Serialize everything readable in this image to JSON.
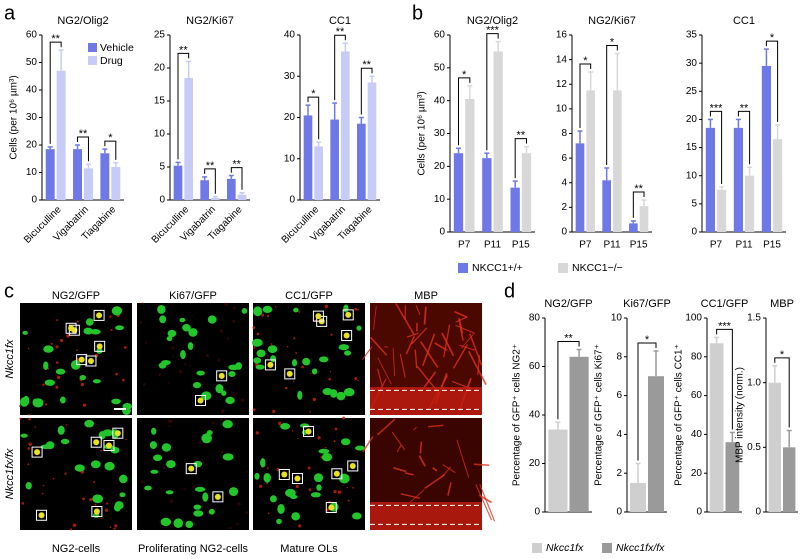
{
  "panel_labels": [
    "a",
    "b",
    "c",
    "d"
  ],
  "micrographs": {
    "columns": [
      "NG2/GFP",
      "Ki67/GFP",
      "CC1/GFP",
      "MBP"
    ],
    "rows": [
      "Nkcc1fx",
      "Nkcc1fx/fx"
    ],
    "captions": [
      "NG2-cells",
      "Proliferating NG2-cells",
      "Mature OLs"
    ]
  },
  "chart_data": [
    {
      "type": "bar",
      "title": "NG2/Olig2",
      "y_label": "Cells (per 10⁶ µm³)",
      "categories": [
        "Bicuculline",
        "Vigabatrin",
        "Tiagabine"
      ],
      "series": [
        {
          "name": "Vehicle",
          "color": "#6e78e6",
          "values": [
            18.5,
            18.5,
            17
          ],
          "errors": [
            0.8,
            1.5,
            1.5
          ]
        },
        {
          "name": "Drug",
          "color": "#c7cbf7",
          "values": [
            47,
            11.5,
            12
          ],
          "errors": [
            7.5,
            1.5,
            1.5
          ]
        }
      ],
      "significance": [
        "**",
        "**",
        "*"
      ],
      "ylim": [
        0,
        60
      ],
      "yticks": [
        0,
        10,
        20,
        30,
        40,
        50,
        60
      ],
      "legend": "upper right"
    },
    {
      "type": "bar",
      "title": "NG2/Ki67",
      "categories": [
        "Bicuculline",
        "Vigabatrin",
        "Tiagabine"
      ],
      "series": [
        {
          "color": "#6e78e6",
          "values": [
            5.2,
            3,
            3.2
          ],
          "errors": [
            0.5,
            0.5,
            0.5
          ]
        },
        {
          "color": "#c7cbf7",
          "values": [
            18.5,
            0.3,
            0.8
          ],
          "errors": [
            2.5,
            0.2,
            0.3
          ]
        }
      ],
      "significance": [
        "**",
        "**",
        "**"
      ],
      "ylim": [
        0,
        25
      ],
      "yticks": [
        0,
        5,
        10,
        15,
        20,
        25
      ]
    },
    {
      "type": "bar",
      "title": "CC1",
      "categories": [
        "Bicuculline",
        "Vigabatrin",
        "Tiagabine"
      ],
      "series": [
        {
          "color": "#6e78e6",
          "values": [
            20.5,
            19.5,
            18.5
          ],
          "errors": [
            2.5,
            4,
            1.5
          ]
        },
        {
          "color": "#c7cbf7",
          "values": [
            13,
            36,
            28.5
          ],
          "errors": [
            1,
            2,
            1.5
          ]
        }
      ],
      "significance": [
        "*",
        "**",
        "**"
      ],
      "ylim": [
        0,
        40
      ],
      "yticks": [
        0,
        10,
        20,
        30,
        40
      ]
    },
    {
      "type": "bar",
      "title": "NG2/Olig2",
      "y_label": "Cells (per 10⁶ µm³)",
      "categories": [
        "P7",
        "P11",
        "P15"
      ],
      "series": [
        {
          "name": "NKCC1+/+",
          "color": "#6e78e6",
          "values": [
            24,
            22.5,
            13.5
          ],
          "errors": [
            1.5,
            1.5,
            2
          ]
        },
        {
          "name": "NKCC1−/−",
          "color": "#d8d8d8",
          "values": [
            40.5,
            55,
            24
          ],
          "errors": [
            4,
            3,
            2
          ]
        }
      ],
      "significance": [
        "*",
        "***",
        "**"
      ],
      "ylim": [
        0,
        60
      ],
      "yticks": [
        0,
        10,
        20,
        30,
        40,
        50,
        60
      ],
      "legend": "bottom"
    },
    {
      "type": "bar",
      "title": "NG2/Ki67",
      "categories": [
        "P7",
        "P11",
        "P15"
      ],
      "series": [
        {
          "color": "#6e78e6",
          "values": [
            7.2,
            4.2,
            0.7
          ],
          "errors": [
            1,
            1,
            0.2
          ]
        },
        {
          "color": "#d8d8d8",
          "values": [
            11.5,
            11.5,
            2.1
          ],
          "errors": [
            1.5,
            3,
            0.5
          ]
        }
      ],
      "significance": [
        "*",
        "*",
        "**"
      ],
      "ylim": [
        0,
        16
      ],
      "yticks": [
        0,
        2,
        4,
        6,
        8,
        10,
        12,
        14,
        16
      ]
    },
    {
      "type": "bar",
      "title": "CC1",
      "categories": [
        "P7",
        "P11",
        "P15"
      ],
      "series": [
        {
          "color": "#6e78e6",
          "values": [
            18.5,
            18.5,
            29.5
          ],
          "errors": [
            1.5,
            1.5,
            3
          ]
        },
        {
          "color": "#d8d8d8",
          "values": [
            7.5,
            10,
            16.5
          ],
          "errors": [
            0.5,
            1.5,
            2.5
          ]
        }
      ],
      "significance": [
        "***",
        "**",
        "*"
      ],
      "ylim": [
        0,
        35
      ],
      "yticks": [
        0,
        5,
        10,
        15,
        20,
        25,
        30,
        35
      ]
    },
    {
      "type": "bar",
      "title": "NG2/GFP",
      "y_label": "Percentage of GFP⁺ cells NG2⁺",
      "series": [
        {
          "name": "Nkcc1fx",
          "color": "#cfcfcf",
          "values": [
            34
          ],
          "errors": [
            3
          ]
        },
        {
          "name": "Nkcc1fx/fx",
          "color": "#9a9a9a",
          "values": [
            64
          ],
          "errors": [
            3
          ]
        }
      ],
      "significance": [
        "**"
      ],
      "ylim": [
        0,
        80
      ],
      "yticks": [
        0,
        20,
        40,
        60,
        80
      ],
      "legend": "bottom"
    },
    {
      "type": "bar",
      "title": "Ki67/GFP",
      "y_label": "Percentage of GFP⁺ cells Ki67⁺",
      "series": [
        {
          "color": "#cfcfcf",
          "values": [
            1.5
          ],
          "errors": [
            1
          ]
        },
        {
          "color": "#9a9a9a",
          "values": [
            7
          ],
          "errors": [
            1.3
          ]
        }
      ],
      "significance": [
        "*"
      ],
      "ylim": [
        0,
        10
      ],
      "yticks": [
        0,
        2,
        4,
        6,
        8,
        10
      ]
    },
    {
      "type": "bar",
      "title": "CC1/GFP",
      "y_label": "Percentage of GFP⁺ cells CC1⁺",
      "series": [
        {
          "color": "#cfcfcf",
          "values": [
            87
          ],
          "errors": [
            3
          ]
        },
        {
          "color": "#9a9a9a",
          "values": [
            36
          ],
          "errors": [
            5
          ]
        }
      ],
      "significance": [
        "***"
      ],
      "ylim": [
        0,
        100
      ],
      "yticks": [
        0,
        20,
        40,
        60,
        80,
        100
      ]
    },
    {
      "type": "bar",
      "title": "MBP",
      "y_label": "MBP intensity (norm.)",
      "series": [
        {
          "color": "#cfcfcf",
          "values": [
            1.0
          ],
          "errors": [
            0.13
          ]
        },
        {
          "color": "#9a9a9a",
          "values": [
            0.5
          ],
          "errors": [
            0.13
          ]
        }
      ],
      "significance": [
        "*"
      ],
      "ylim": [
        0,
        1.5
      ],
      "yticks": [
        0,
        0.5,
        {
          "value": 1,
          "label": "1.0"
        },
        1.5
      ]
    }
  ]
}
